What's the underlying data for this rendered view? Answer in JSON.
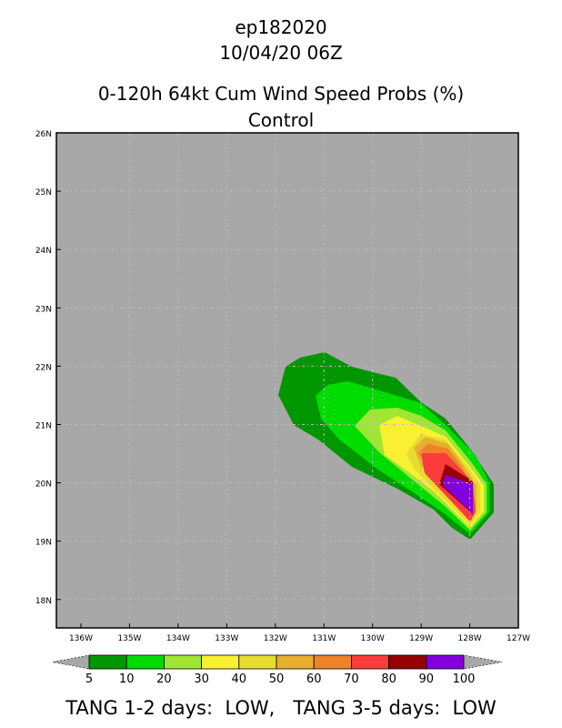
{
  "header": {
    "storm_id": "ep182020",
    "datetime": "10/04/20 06Z",
    "title": "0-120h 64kt Cum Wind Speed Probs (%)",
    "subtitle": "Control"
  },
  "footer": {
    "text": "TANG 1-2 days:  LOW,   TANG 3-5 days:  LOW"
  },
  "chart_data": {
    "type": "heatmap",
    "title": "0-120h 64kt Cum Wind Speed Probs (%)",
    "x_ticks": [
      "136W",
      "135W",
      "134W",
      "133W",
      "132W",
      "131W",
      "130W",
      "129W",
      "128W",
      "127W"
    ],
    "y_ticks": [
      "26N",
      "25N",
      "24N",
      "23N",
      "22N",
      "21N",
      "20N",
      "19N",
      "18N"
    ],
    "xlim": [
      -136.5,
      -127
    ],
    "ylim": [
      17.5,
      26
    ],
    "background": "#a8a8a8",
    "levels": [
      "5",
      "10",
      "20",
      "30",
      "40",
      "50",
      "60",
      "70",
      "80",
      "90",
      "100"
    ],
    "colors": [
      "#009600",
      "#00dc00",
      "#a0e632",
      "#faf032",
      "#e6dc32",
      "#e6af2d",
      "#f08228",
      "#fa3c3c",
      "#960000",
      "#8200dc"
    ],
    "max_probability_region": "near 128W 19.8N"
  }
}
